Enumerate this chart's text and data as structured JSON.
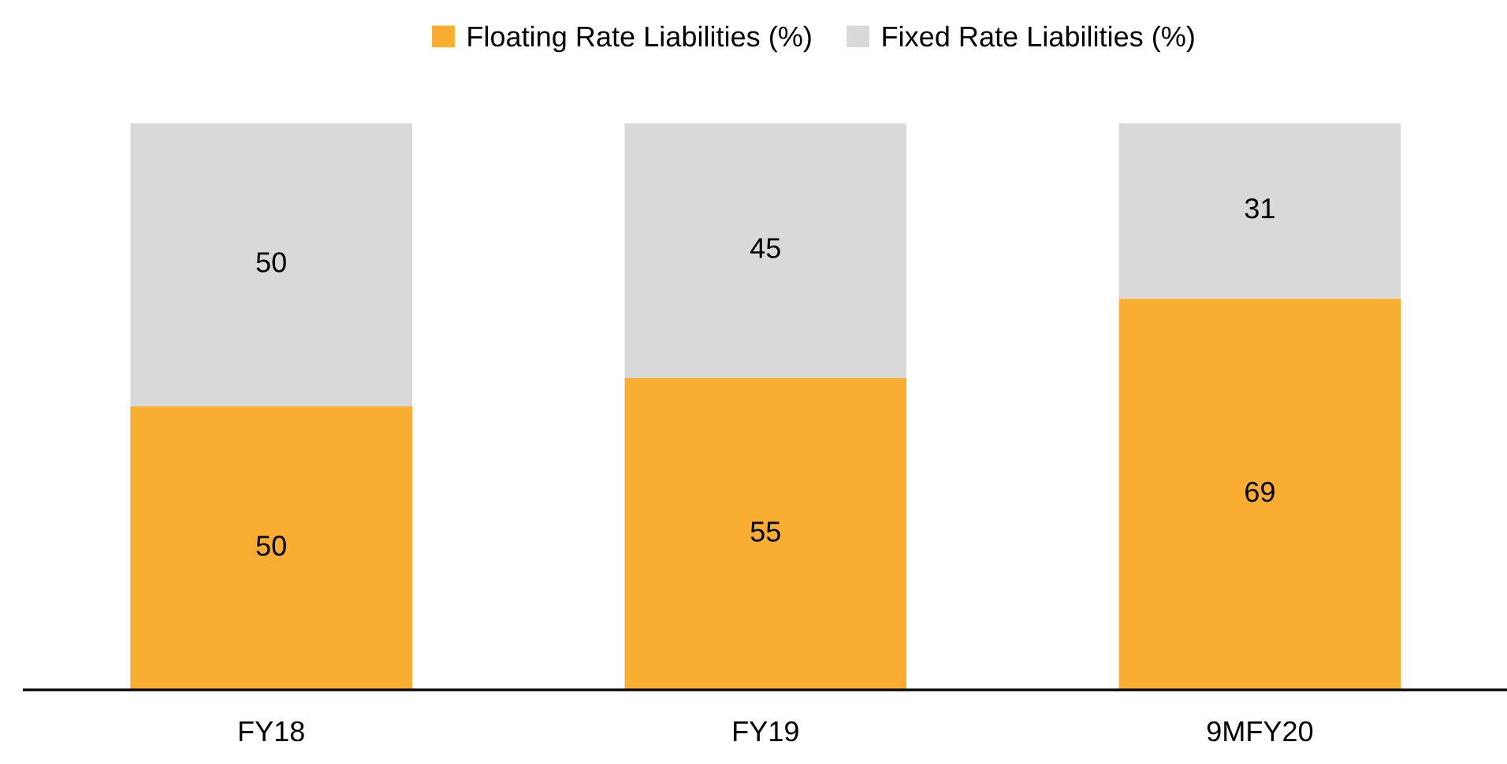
{
  "chart_data": {
    "type": "bar",
    "stacked": true,
    "categories": [
      "FY18",
      "FY19",
      "9MFY20"
    ],
    "series": [
      {
        "name": "Floating Rate Liabilities (%)",
        "color": "#f9ae31",
        "values": [
          50,
          55,
          69
        ]
      },
      {
        "name": "Fixed Rate Liabilities (%)",
        "color": "#d9d9d9",
        "values": [
          50,
          45,
          31
        ]
      }
    ],
    "data_labels": true,
    "legend": "top",
    "grid": false
  }
}
